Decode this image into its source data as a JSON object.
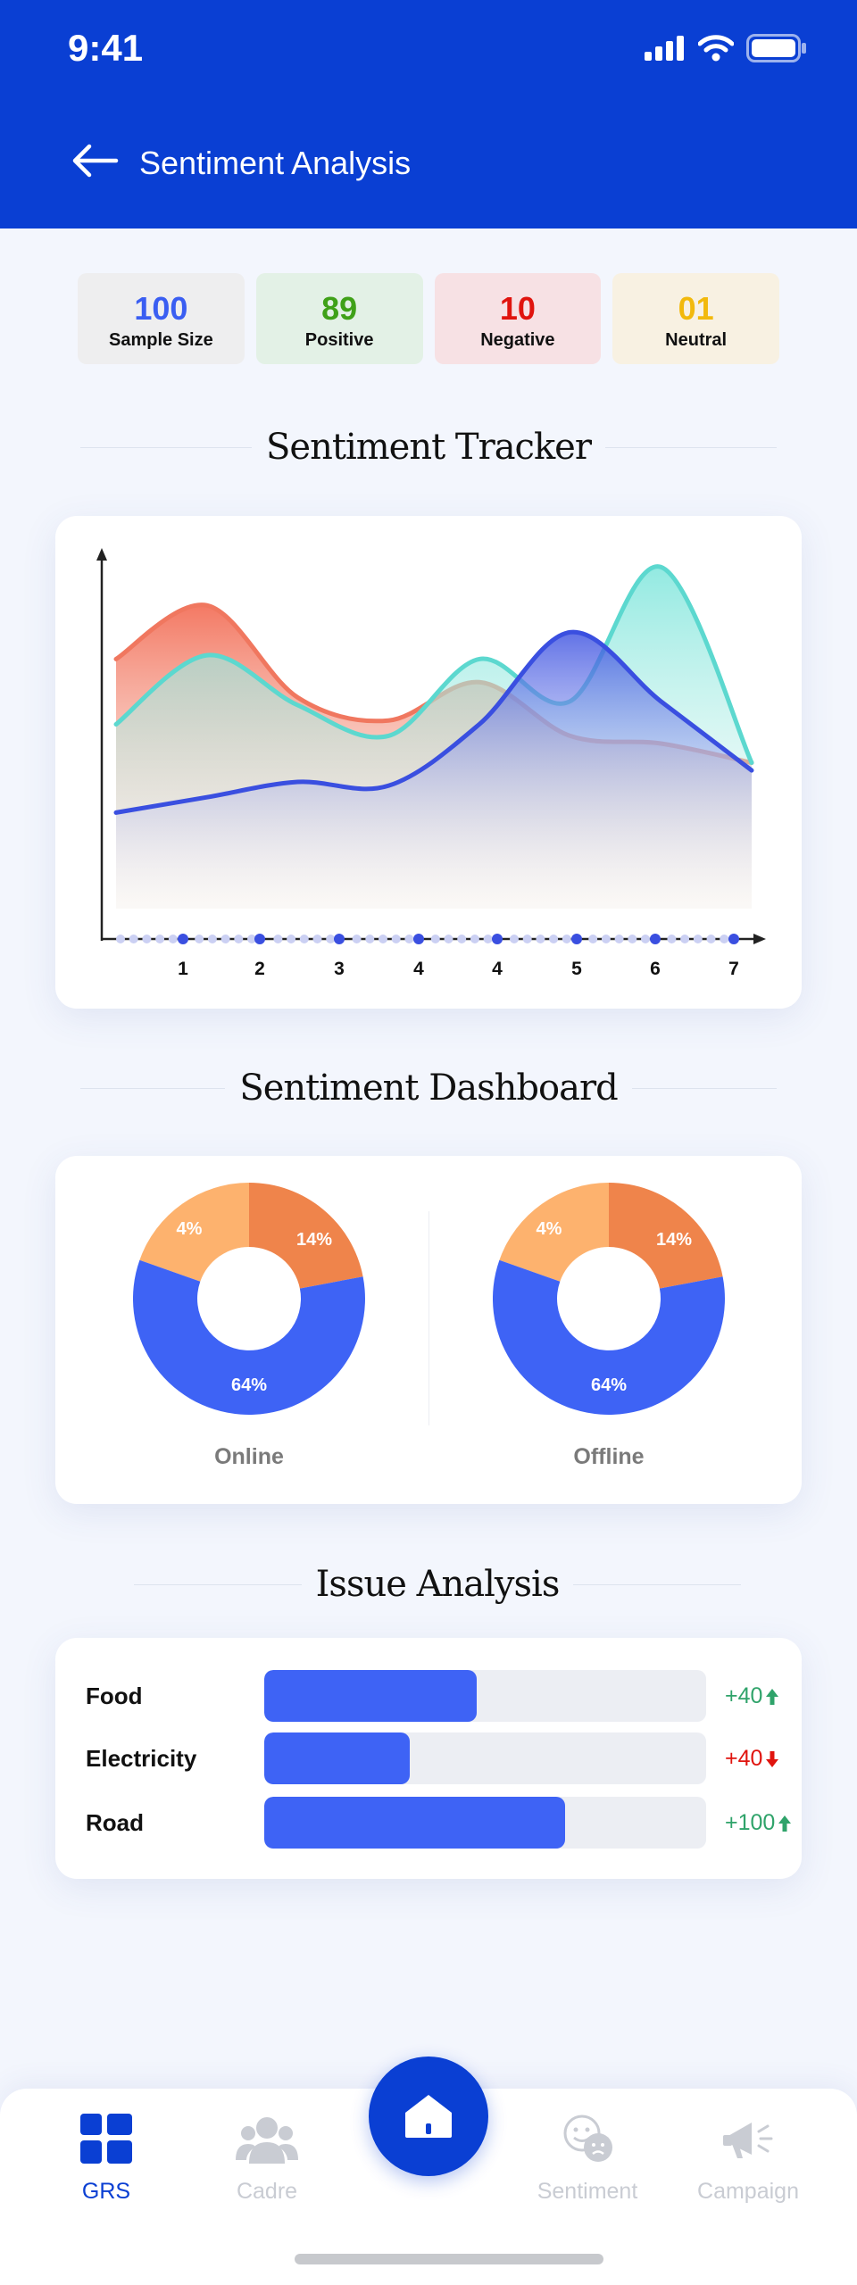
{
  "status_bar": {
    "time": "9:41"
  },
  "header": {
    "title": "Sentiment Analysis"
  },
  "stats": [
    {
      "value": "100",
      "label": "Sample Size",
      "color": "#3a5ef2",
      "bg": "#eeeeef"
    },
    {
      "value": "89",
      "label": "Positive",
      "color": "#3fa118",
      "bg": "#e3f1e6"
    },
    {
      "value": "10",
      "label": "Negative",
      "color": "#e0140e",
      "bg": "#f7e1e4"
    },
    {
      "value": "01",
      "label": "Neutral",
      "color": "#f2b90c",
      "bg": "#f8f1e2"
    }
  ],
  "tracker": {
    "title": "Sentiment Tracker",
    "x_labels": [
      "1",
      "2",
      "3",
      "4",
      "4",
      "5",
      "6",
      "7"
    ]
  },
  "chart_data": [
    {
      "type": "area",
      "x": [
        "1",
        "2",
        "3",
        "4",
        "4",
        "5",
        "6",
        "7"
      ],
      "series": [
        {
          "color": "#f0775f",
          "values": [
            0.72,
            0.86,
            0.62,
            0.56,
            0.66,
            0.52,
            0.5,
            0.45
          ]
        },
        {
          "color": "#5cd8cf",
          "values": [
            0.55,
            0.73,
            0.6,
            0.52,
            0.72,
            0.61,
            0.96,
            0.45
          ]
        },
        {
          "color": "#3a4fe0",
          "values": [
            0.32,
            0.36,
            0.4,
            0.39,
            0.55,
            0.79,
            0.61,
            0.43
          ]
        }
      ]
    },
    {
      "type": "pie",
      "title": "Online",
      "slices": [
        {
          "label": "64%",
          "value": 64,
          "color": "#3e63f5"
        },
        {
          "label": "4%",
          "value": 4,
          "color": "#fdb26e"
        },
        {
          "label": "14%",
          "value": 14,
          "color": "#ef844b"
        }
      ]
    },
    {
      "type": "pie",
      "title": "Offline",
      "slices": [
        {
          "label": "64%",
          "value": 64,
          "color": "#3e63f5"
        },
        {
          "label": "4%",
          "value": 4,
          "color": "#fdb26e"
        },
        {
          "label": "14%",
          "value": 14,
          "color": "#ef844b"
        }
      ]
    }
  ],
  "dashboard": {
    "title": "Sentiment Dashboard",
    "charts": [
      {
        "label": "Online",
        "big": "64%",
        "small_left": "4%",
        "small_right": "14%"
      },
      {
        "label": "Offline",
        "big": "64%",
        "small_left": "4%",
        "small_right": "14%"
      }
    ]
  },
  "issues": {
    "title": "Issue Analysis",
    "rows": [
      {
        "name": "Food",
        "fill_percent": 48,
        "delta": "+40",
        "trend": "up",
        "color": "#2fa36a"
      },
      {
        "name": "Electricity",
        "fill_percent": 33,
        "delta": "+40",
        "trend": "down",
        "color": "#e0140e"
      },
      {
        "name": "Road",
        "fill_percent": 68,
        "delta": "+100",
        "trend": "up",
        "color": "#2fa36a"
      }
    ]
  },
  "nav": {
    "items": [
      {
        "label": "GRS",
        "icon": "grid-icon",
        "active": true
      },
      {
        "label": "Cadre",
        "icon": "users-icon",
        "active": false
      },
      {
        "label": "Sentiment",
        "icon": "sentiment-icon",
        "active": false
      },
      {
        "label": "Campaign",
        "icon": "megaphone-icon",
        "active": false
      }
    ],
    "home_icon": "home-icon"
  }
}
